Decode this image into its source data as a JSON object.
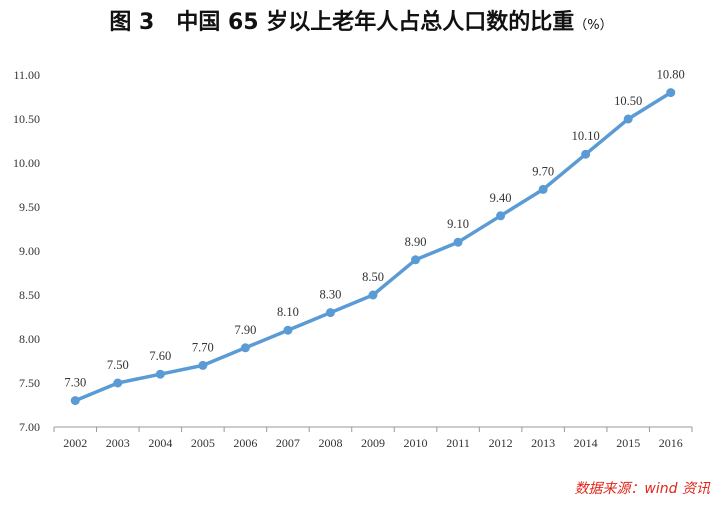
{
  "title": {
    "text": "图 3　中国 65 岁以上老年人占总人口数的比重",
    "unit": "（%）"
  },
  "source": "数据来源：wind 资讯",
  "colors": {
    "line": "#5b9bd5",
    "axis": "#999999"
  },
  "chart_data": {
    "type": "line",
    "title": "图 3　中国 65 岁以上老年人占总人口数的比重（%）",
    "categories": [
      "2002",
      "2003",
      "2004",
      "2005",
      "2006",
      "2007",
      "2008",
      "2009",
      "2010",
      "2011",
      "2012",
      "2013",
      "2014",
      "2015",
      "2016"
    ],
    "series": [
      {
        "values": [
          7.3,
          7.5,
          7.6,
          7.7,
          7.9,
          8.1,
          8.3,
          8.5,
          8.9,
          9.1,
          9.4,
          9.7,
          10.1,
          10.5,
          10.8
        ]
      }
    ],
    "ylim": [
      7.0,
      11.0
    ],
    "yticks": [
      7.0,
      7.5,
      8.0,
      8.5,
      9.0,
      9.5,
      10.0,
      10.5,
      11.0
    ],
    "grid": false,
    "legend": "none",
    "data_labels": true
  }
}
